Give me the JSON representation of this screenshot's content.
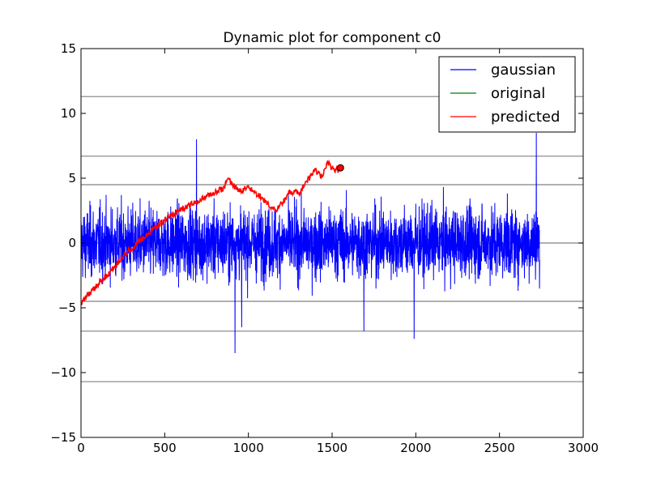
{
  "chart_data": {
    "type": "line",
    "title": "Dynamic plot for component c0",
    "xlabel": "",
    "ylabel": "",
    "xlim": [
      0,
      3000
    ],
    "ylim": [
      -15,
      15
    ],
    "x_ticks": [
      0,
      500,
      1000,
      1500,
      2000,
      2500,
      3000
    ],
    "x_tick_labels": [
      "0",
      "500",
      "1000",
      "1500",
      "2000",
      "2500",
      "3000"
    ],
    "y_ticks": [
      -15,
      -10,
      -5,
      0,
      5,
      10,
      15
    ],
    "y_tick_labels": [
      "−15",
      "−10",
      "−5",
      "0",
      "5",
      "10",
      "15"
    ],
    "grid": false,
    "legend_position": "top-right",
    "colors": {
      "gaussian": "#0000ff",
      "original": "#008000",
      "predicted": "#ff0000",
      "reference_lines": "#808080"
    },
    "reference_lines_y": [
      11.3,
      6.7,
      4.5,
      0,
      -4.5,
      -6.8,
      -10.7
    ],
    "series": [
      {
        "name": "gaussian",
        "description": "dense zero-mean noise, 0 to ~2740 points",
        "x_range": [
          0,
          2740
        ],
        "typical_range": [
          -4.5,
          5.5
        ],
        "extremes": [
          {
            "x": 690,
            "y": 8.0
          },
          {
            "x": 920,
            "y": -8.5
          },
          {
            "x": 1990,
            "y": -7.4
          },
          {
            "x": 2720,
            "y": 8.5
          },
          {
            "x": 1690,
            "y": -6.8
          },
          {
            "x": 960,
            "y": -6.5
          }
        ]
      },
      {
        "name": "original",
        "values": []
      },
      {
        "name": "predicted",
        "x": [
          0,
          100,
          200,
          300,
          400,
          500,
          600,
          700,
          780,
          850,
          880,
          920,
          960,
          1000,
          1040,
          1080,
          1120,
          1160,
          1200,
          1250,
          1300,
          1350,
          1400,
          1440,
          1470,
          1500,
          1530,
          1550
        ],
        "y": [
          -4.6,
          -3.2,
          -1.8,
          -0.4,
          0.7,
          1.8,
          2.6,
          3.2,
          3.8,
          4.2,
          5.0,
          4.3,
          4.0,
          4.4,
          3.9,
          3.5,
          3.0,
          2.5,
          3.0,
          4.0,
          3.8,
          4.8,
          5.6,
          5.1,
          6.2,
          5.8,
          5.6,
          5.8
        ],
        "marker_end": {
          "x": 1550,
          "y": 5.8
        }
      }
    ]
  }
}
